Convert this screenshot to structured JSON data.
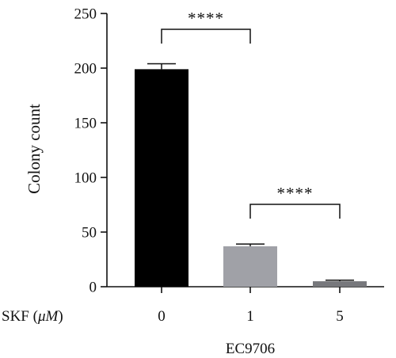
{
  "chart_data": {
    "type": "bar",
    "ylabel": "Colony count",
    "ylim": [
      0,
      250
    ],
    "yticks": [
      0,
      50,
      100,
      150,
      200,
      250
    ],
    "x_axis_label": "SKF (μM)",
    "x_axis_unit": "μM",
    "categories": [
      "0",
      "1",
      "5"
    ],
    "group_label": "EC9706",
    "values": [
      199,
      37,
      5
    ],
    "errors": [
      5,
      2,
      1
    ],
    "colors": [
      "#000000",
      "#a0a1a7",
      "#77787c"
    ],
    "significance": [
      {
        "from": 0,
        "to": 1,
        "label": "****"
      },
      {
        "from": 1,
        "to": 2,
        "label": "****"
      }
    ]
  }
}
